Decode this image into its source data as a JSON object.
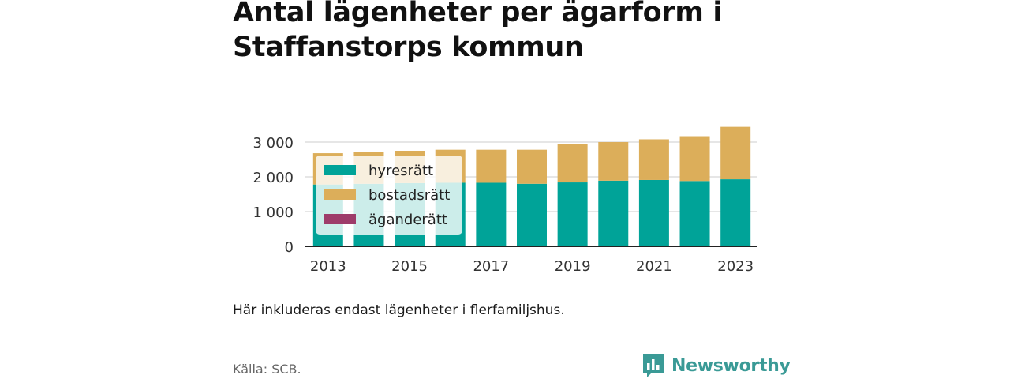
{
  "title": "Antal lägenheter per ägarform i Staffanstorps kommun",
  "note": "Här inkluderas endast lägenheter i flerfamiljshus.",
  "source": "Källa: SCB.",
  "brand": {
    "name": "Newsworthy",
    "icon": "newsworthy-logo-icon",
    "color": "#3a9a96"
  },
  "chart_data": {
    "type": "bar",
    "stacked": true,
    "categories": [
      "2013",
      "2014",
      "2015",
      "2016",
      "2017",
      "2018",
      "2019",
      "2020",
      "2021",
      "2022",
      "2023"
    ],
    "x_tick_labels": [
      "2013",
      "2015",
      "2017",
      "2019",
      "2021",
      "2023"
    ],
    "y_tick_values": [
      0,
      1000,
      2000,
      3000
    ],
    "y_tick_labels": [
      "0",
      "1 000",
      "2 000",
      "3 000"
    ],
    "ylim": [
      0,
      3500
    ],
    "grid": true,
    "legend_position": "top-left",
    "series": [
      {
        "name": "hyresrätt",
        "color": "#00a398",
        "values": [
          1780,
          1800,
          1820,
          1830,
          1830,
          1800,
          1840,
          1890,
          1910,
          1880,
          1930
        ]
      },
      {
        "name": "bostadsrätt",
        "color": "#dcae5a",
        "values": [
          900,
          910,
          930,
          950,
          950,
          980,
          1100,
          1110,
          1170,
          1290,
          1510
        ]
      },
      {
        "name": "äganderätt",
        "color": "#9e3c6a",
        "values": [
          0,
          0,
          0,
          0,
          0,
          0,
          0,
          0,
          0,
          0,
          0
        ]
      }
    ]
  }
}
